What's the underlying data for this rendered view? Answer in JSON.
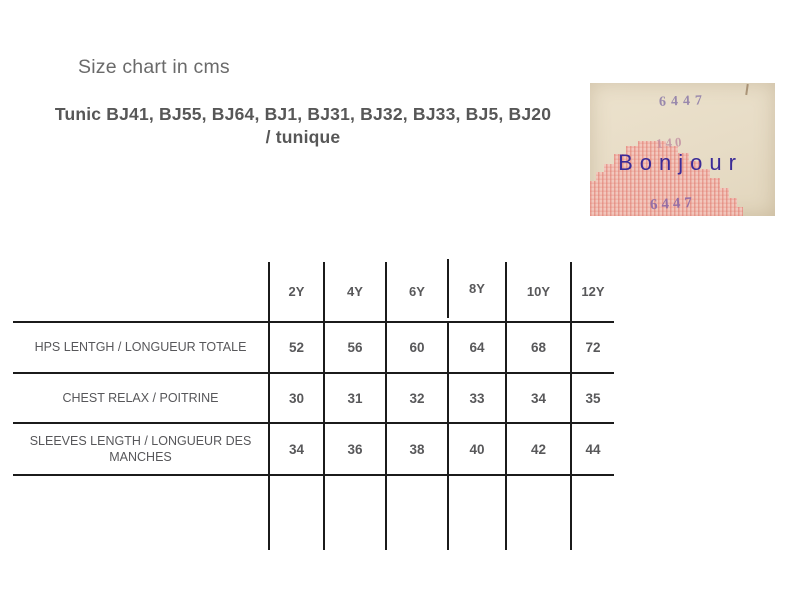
{
  "page": {
    "title": "Size chart in cms"
  },
  "heading": {
    "line1": "Tunic  BJ41, BJ55, BJ64, BJ1, BJ31, BJ32, BJ33, BJ5, BJ20",
    "line2": "/ tunique"
  },
  "photo": {
    "stamp_top": "6447",
    "stamp_mid": "140",
    "brand": "Bonjour",
    "stamp_bottom": "6447"
  },
  "size_table": {
    "unit": "cms",
    "columns": [
      "2Y",
      "4Y",
      "6Y",
      "8Y",
      "10Y",
      "12Y"
    ],
    "rows": [
      {
        "label": "HPS LENTGH / LONGUEUR TOTALE",
        "values": [
          "52",
          "56",
          "60",
          "64",
          "68",
          "72"
        ]
      },
      {
        "label": "CHEST RELAX / POITRINE",
        "values": [
          "30",
          "31",
          "32",
          "33",
          "34",
          "35"
        ]
      },
      {
        "label": "SLEEVES LENGTH / LONGUEUR DES MANCHES",
        "values": [
          "34",
          "36",
          "38",
          "40",
          "42",
          "44"
        ]
      }
    ]
  },
  "colors": {
    "brand_indigo": "#3b2b97",
    "stitch_pink": "#e89a90",
    "paper_cream": "#e8decb",
    "table_line": "#1b1b1b",
    "text_gray": "#58585a"
  }
}
